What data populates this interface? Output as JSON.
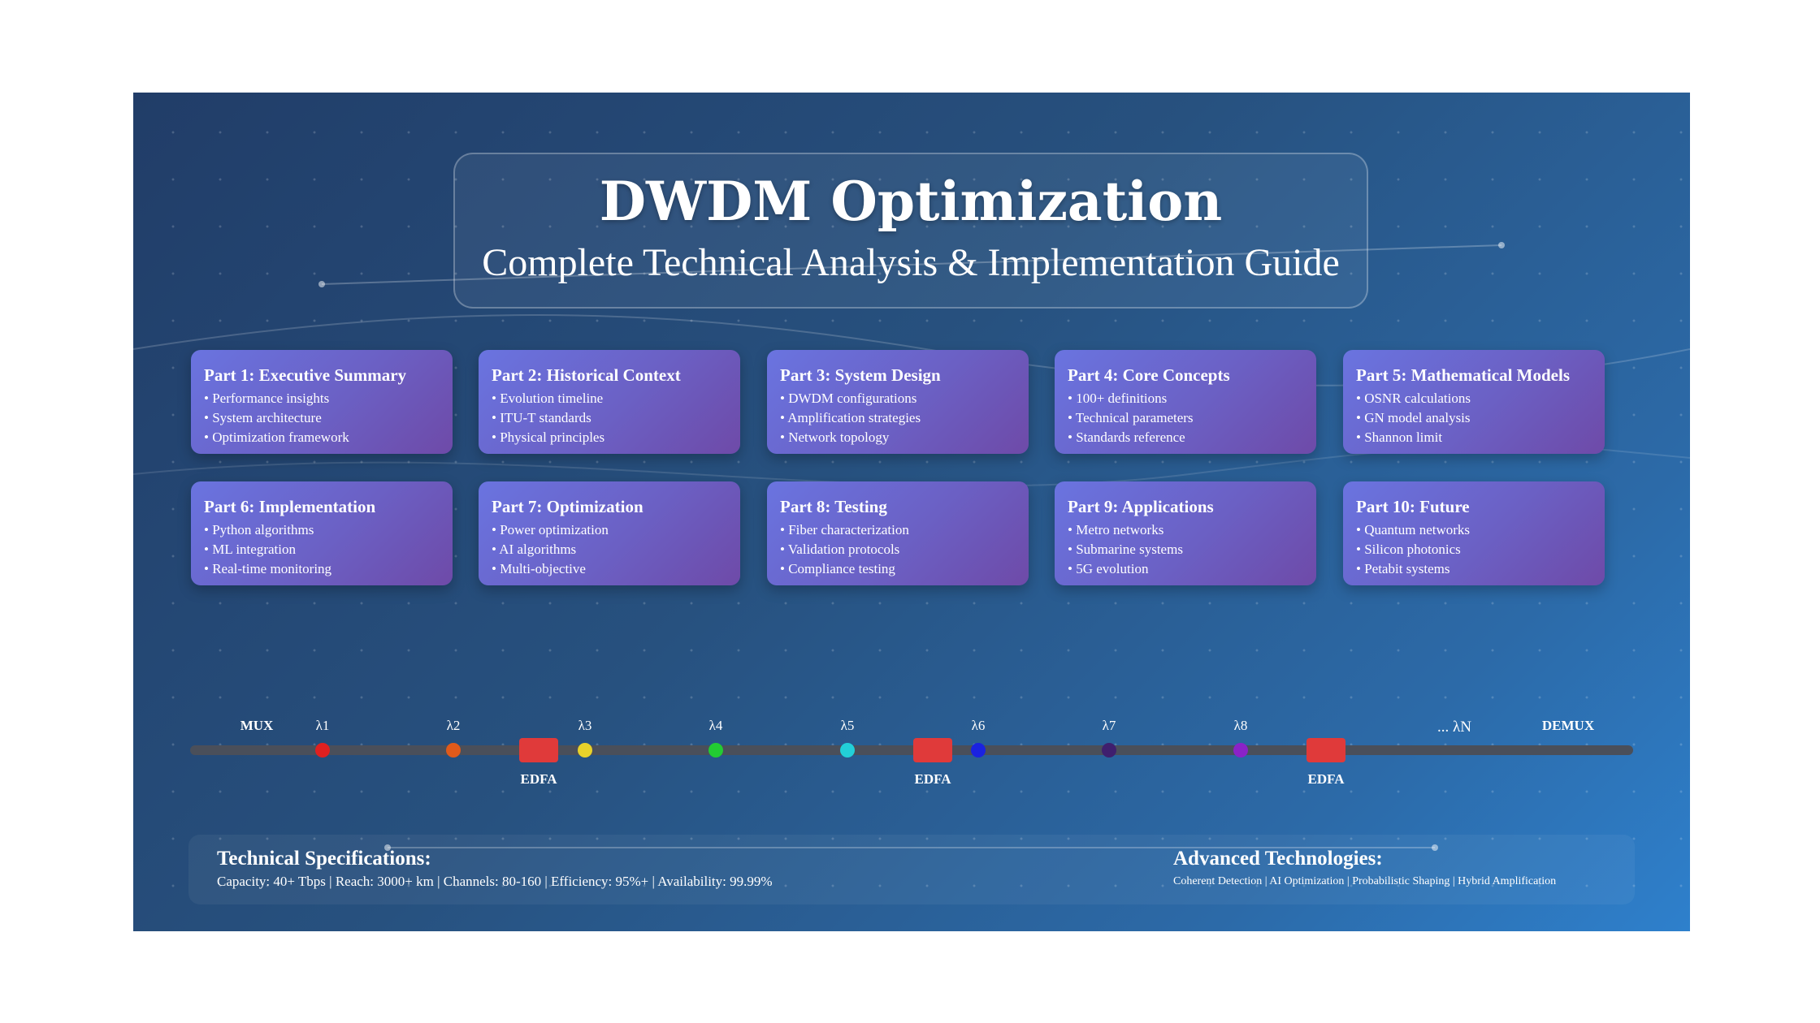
{
  "title": "DWDM Optimization",
  "subtitle": "Complete Technical Analysis & Implementation Guide",
  "cards": [
    {
      "title": "Part 1: Executive Summary",
      "items": [
        "Performance insights",
        "System architecture",
        "Optimization framework"
      ]
    },
    {
      "title": "Part 2: Historical Context",
      "items": [
        "Evolution timeline",
        "ITU-T standards",
        "Physical principles"
      ]
    },
    {
      "title": "Part 3: System Design",
      "items": [
        "DWDM configurations",
        "Amplification strategies",
        "Network topology"
      ]
    },
    {
      "title": "Part 4: Core Concepts",
      "items": [
        "100+ definitions",
        "Technical parameters",
        "Standards reference"
      ]
    },
    {
      "title": "Part 5: Mathematical Models",
      "items": [
        "OSNR calculations",
        "GN model analysis",
        "Shannon limit"
      ]
    },
    {
      "title": "Part 6: Implementation",
      "items": [
        "Python algorithms",
        "ML integration",
        "Real-time monitoring"
      ]
    },
    {
      "title": "Part 7: Optimization",
      "items": [
        "Power optimization",
        "AI algorithms",
        "Multi-objective"
      ]
    },
    {
      "title": "Part 8: Testing",
      "items": [
        "Fiber characterization",
        "Validation protocols",
        "Compliance testing"
      ]
    },
    {
      "title": "Part 9: Applications",
      "items": [
        "Metro networks",
        "Submarine systems",
        "5G evolution"
      ]
    },
    {
      "title": "Part 10: Future",
      "items": [
        "Quantum networks",
        "Silicon photonics",
        "Petabit systems"
      ]
    }
  ],
  "diagram": {
    "mux_label": "MUX",
    "demux_label": "DEMUX",
    "amplifier_label": "EDFA",
    "tail_label": "... λN",
    "channels": [
      {
        "label": "λ1",
        "color": "#e02020"
      },
      {
        "label": "λ2",
        "color": "#e05a1a"
      },
      {
        "label": "λ3",
        "color": "#e8d22a"
      },
      {
        "label": "λ4",
        "color": "#22cc33"
      },
      {
        "label": "λ5",
        "color": "#22d0d8"
      },
      {
        "label": "λ6",
        "color": "#1a22e0"
      },
      {
        "label": "λ7",
        "color": "#3f1f6e"
      },
      {
        "label": "λ8",
        "color": "#8a22c8"
      }
    ],
    "amplifier_color": "#e03a3a",
    "fiber_color": "#4a4f5a"
  },
  "specs": {
    "tech_heading": "Technical Specifications:",
    "tech_text": "Capacity: 40+ Tbps | Reach: 3000+ km | Channels: 80-160 | Efficiency: 95%+ | Availability: 99.99%",
    "adv_heading": "Advanced Technologies:",
    "adv_text": "Coherent Detection | AI Optimization | Probabilistic Shaping | Hybrid Amplification"
  }
}
